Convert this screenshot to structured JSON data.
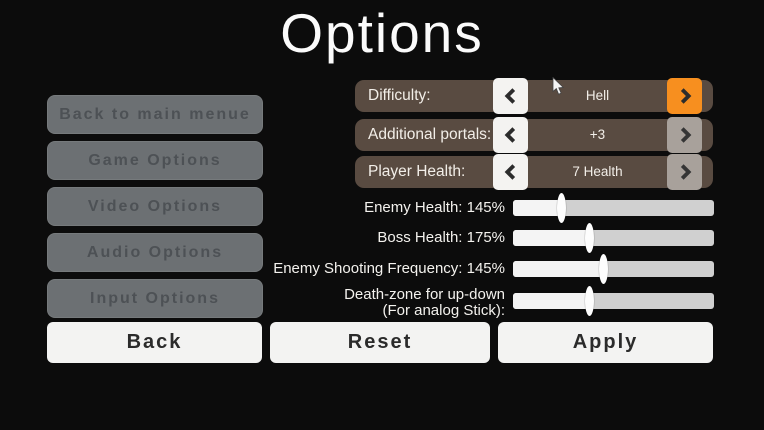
{
  "title": "Options",
  "sidebar": {
    "items": [
      {
        "label": "Back to main menue"
      },
      {
        "label": "Game Options"
      },
      {
        "label": "Video Options"
      },
      {
        "label": "Audio Options"
      },
      {
        "label": "Input Options"
      }
    ]
  },
  "selectors": {
    "difficulty": {
      "label": "Difficulty:",
      "value": "Hell"
    },
    "portals": {
      "label": "Additional portals:",
      "value": "+3"
    },
    "player_health": {
      "label": "Player Health:",
      "value": "7 Health"
    }
  },
  "sliders": [
    {
      "label": "Enemy Health: 145%",
      "percent": 24
    },
    {
      "label": "Boss Health: 175%",
      "percent": 38
    },
    {
      "label": "Enemy Shooting Frequency: 145%",
      "percent": 45
    },
    {
      "label": "Death-zone for up-down",
      "label2": "(For analog Stick):",
      "percent": 38
    }
  ],
  "footer": {
    "back_label": "Back",
    "reset_label": "Reset",
    "apply_label": "Apply"
  },
  "icons": {
    "prev": "chevron-left-icon",
    "next": "chevron-right-icon"
  },
  "colors": {
    "background": "#0c0c0c",
    "panel_brown": "#594b41",
    "accent_orange": "#f78f1f",
    "sidebar_gray": "#6c7073",
    "button_white": "#f3f3f2",
    "slider_track": "#d0d0d0",
    "slider_fill": "#f4f4f4"
  }
}
